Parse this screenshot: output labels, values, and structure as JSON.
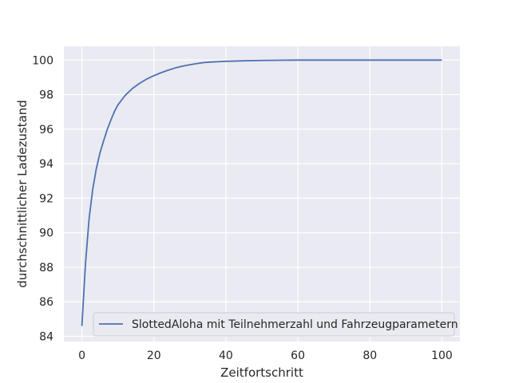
{
  "chart_data": {
    "type": "line",
    "title": "",
    "xlabel": "Zeitfortschritt",
    "ylabel": "durchschnittlicher Ladezustand",
    "xlim": [
      -5,
      105
    ],
    "ylim": [
      83.7,
      100.8
    ],
    "x_ticks": [
      0,
      20,
      40,
      60,
      80,
      100
    ],
    "y_ticks": [
      84,
      86,
      88,
      90,
      92,
      94,
      96,
      98,
      100
    ],
    "grid": true,
    "legend_position": "lower right",
    "series": [
      {
        "name": "SlottedAloha mit Teilnehmerzahl und Fahrzeugparametern",
        "color": "#4c72b0",
        "x": [
          0,
          1,
          2,
          3,
          4,
          5,
          6,
          7,
          8,
          9,
          10,
          12,
          14,
          16,
          18,
          20,
          22,
          24,
          26,
          28,
          30,
          32,
          34,
          36,
          38,
          40,
          45,
          50,
          55,
          60,
          70,
          80,
          90,
          100
        ],
        "y": [
          84.6,
          88.2,
          90.8,
          92.5,
          93.7,
          94.6,
          95.3,
          95.95,
          96.5,
          97.0,
          97.4,
          97.95,
          98.35,
          98.65,
          98.9,
          99.1,
          99.27,
          99.42,
          99.55,
          99.65,
          99.73,
          99.8,
          99.86,
          99.89,
          99.91,
          99.93,
          99.96,
          99.98,
          99.99,
          100.0,
          100.0,
          100.0,
          100.0,
          100.0
        ]
      }
    ]
  }
}
